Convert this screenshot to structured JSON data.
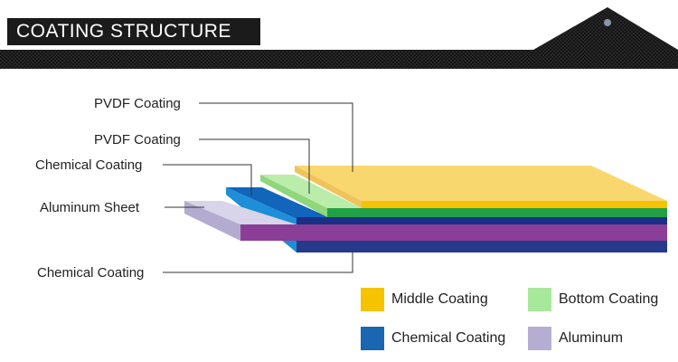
{
  "header": {
    "title": "COATING STRUCTURE"
  },
  "callouts": [
    {
      "label": "PVDF Coating"
    },
    {
      "label": "PVDF Coating"
    },
    {
      "label": "Chemical Coating"
    },
    {
      "label": "Aluminum Sheet"
    },
    {
      "label": "Chemical Coating"
    }
  ],
  "legend": [
    {
      "label": "Middle Coating",
      "color": "#f5c300"
    },
    {
      "label": "Bottom Coating",
      "color": "#a8e89a"
    },
    {
      "label": "Chemical Coating",
      "color": "#1a66b3"
    },
    {
      "label": "Aluminum",
      "color": "#b5aed2"
    }
  ],
  "colors": {
    "header_band": "#141414",
    "pvdf_top": "#f8d86e",
    "pvdf_edge": "#f5c100",
    "green_layer": "#22a046",
    "blue_layer": "#1166bb",
    "navy_layer": "#263a8c",
    "purple_layer": "#8a3e98",
    "aluminum": "#cfcbe3"
  }
}
